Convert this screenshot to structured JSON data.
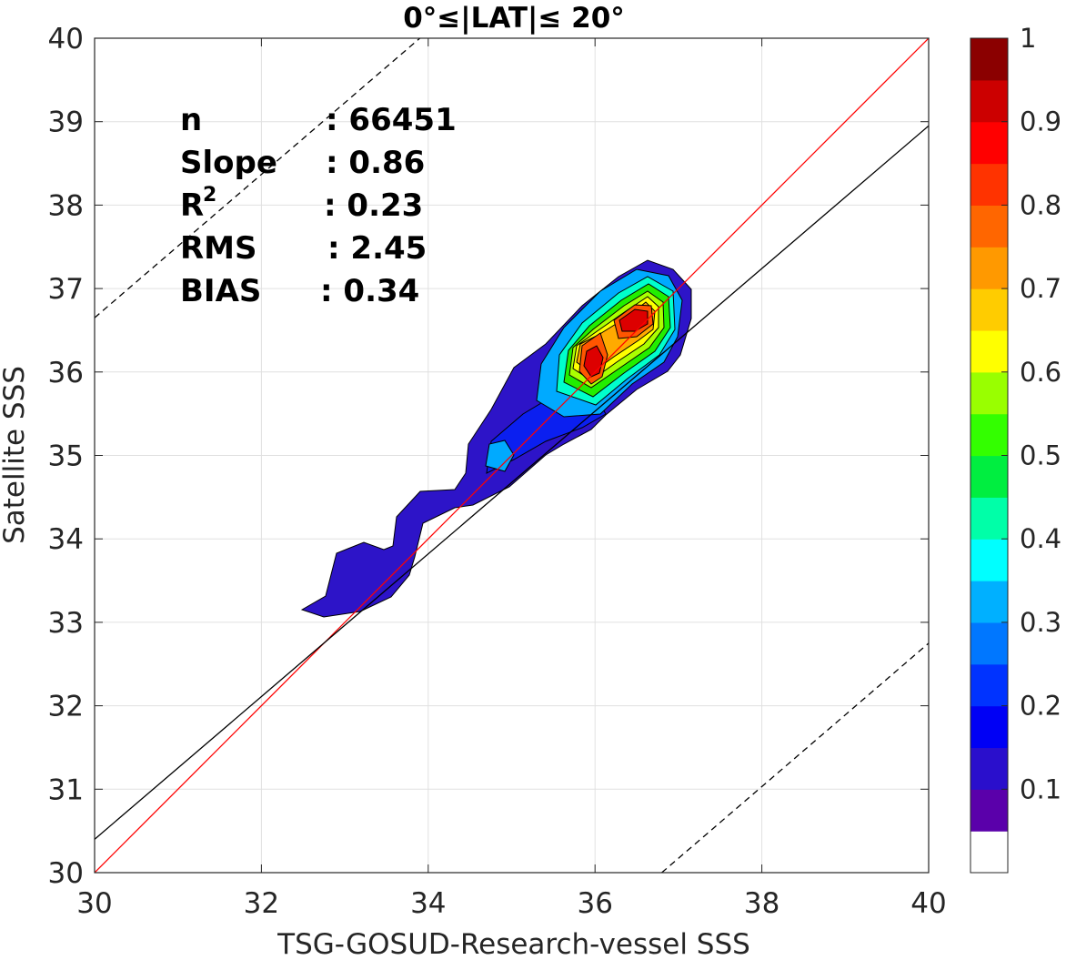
{
  "chart_data": {
    "type": "contour",
    "title": "0°≤|LAT|≤ 20°",
    "xlabel": "TSG-GOSUD-Research-vessel SSS",
    "ylabel": "Satellite SSS",
    "xlim": [
      30,
      40
    ],
    "ylim": [
      30,
      40
    ],
    "xticks": [
      "30",
      "32",
      "34",
      "36",
      "38",
      "40"
    ],
    "yticks": [
      "30",
      "31",
      "32",
      "33",
      "34",
      "35",
      "36",
      "37",
      "38",
      "39",
      "40"
    ],
    "grid": true,
    "stats": [
      {
        "label": "n",
        "value": ": 66451"
      },
      {
        "label": "Slope",
        "value": ": 0.86"
      },
      {
        "label": "R",
        "sup": "2",
        "value": ": 0.23"
      },
      {
        "label": "RMS",
        "value": ": 2.45"
      },
      {
        "label": "BIAS",
        "value": ": 0.34"
      }
    ],
    "lines": {
      "identity": {
        "color": "#ff0000",
        "x": [
          30,
          40
        ],
        "y": [
          30,
          40
        ]
      },
      "regression": {
        "color": "#000000",
        "x": [
          30,
          40
        ],
        "y": [
          30.4,
          38.95
        ]
      },
      "upper_bound": {
        "color": "#000000",
        "dash": true,
        "x": [
          30,
          33.9
        ],
        "y": [
          36.65,
          40
        ]
      },
      "lower_bound": {
        "color": "#000000",
        "dash": true,
        "x": [
          36.8,
          40
        ],
        "y": [
          30,
          32.75
        ]
      }
    },
    "contour_peaks": [
      {
        "x": 36.0,
        "y": 36.1,
        "level": 0.95
      },
      {
        "x": 36.55,
        "y": 36.68,
        "level": 0.95
      }
    ],
    "colorbar": {
      "tick_labels": [
        "0.1",
        "0.2",
        "0.3",
        "0.4",
        "0.5",
        "0.6",
        "0.7",
        "0.8",
        "0.9",
        "1"
      ],
      "tick_values": [
        0.1,
        0.2,
        0.3,
        0.4,
        0.5,
        0.6,
        0.7,
        0.8,
        0.9,
        1.0
      ],
      "colors": [
        "#ffffff",
        "#5a00aa",
        "#2a0fcc",
        "#0000f5",
        "#0033ff",
        "#0077ff",
        "#00b0ff",
        "#00ffff",
        "#00ffa8",
        "#00ee40",
        "#33ff00",
        "#99ff00",
        "#ffff00",
        "#ffcc00",
        "#ff9900",
        "#ff6600",
        "#ff3300",
        "#ff0000",
        "#cc0000",
        "#8b0000"
      ]
    }
  }
}
